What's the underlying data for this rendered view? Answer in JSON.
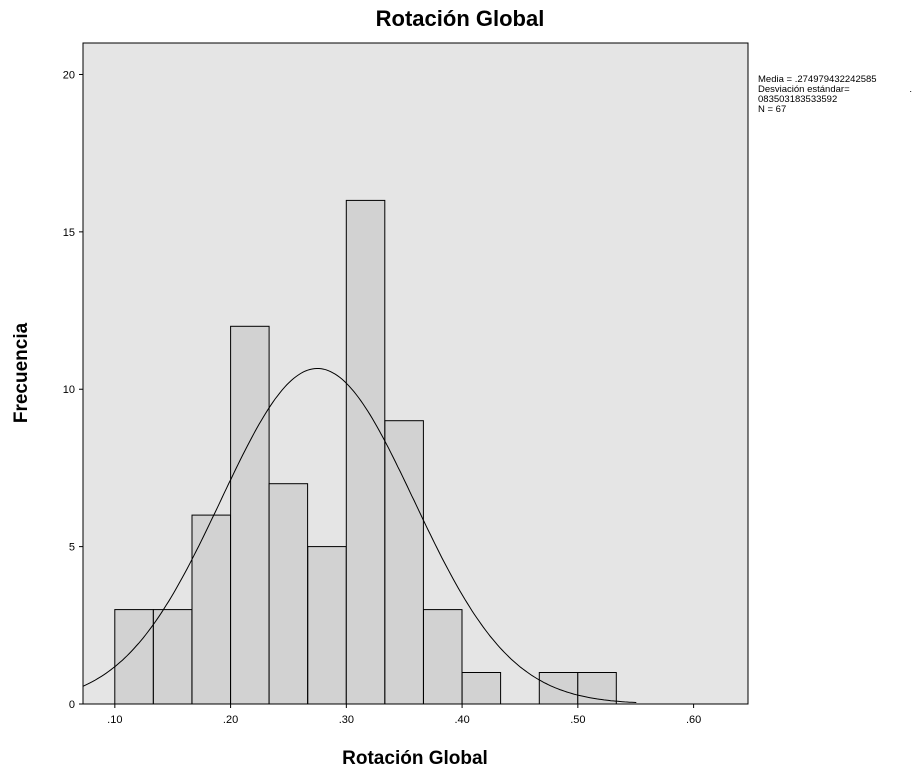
{
  "chart_data": {
    "type": "bar",
    "title": "Rotación Global",
    "xlabel": "Rotación Global",
    "ylabel": "Frecuencia",
    "bin_width": 0.0333,
    "bins": [
      {
        "start": 0.1,
        "count": 3
      },
      {
        "start": 0.1333,
        "count": 3
      },
      {
        "start": 0.1667,
        "count": 6
      },
      {
        "start": 0.2,
        "count": 12
      },
      {
        "start": 0.2333,
        "count": 7
      },
      {
        "start": 0.2667,
        "count": 5
      },
      {
        "start": 0.3,
        "count": 16
      },
      {
        "start": 0.3333,
        "count": 9
      },
      {
        "start": 0.3667,
        "count": 3
      },
      {
        "start": 0.4,
        "count": 1
      },
      {
        "start": 0.4333,
        "count": 0
      },
      {
        "start": 0.4667,
        "count": 1
      },
      {
        "start": 0.5,
        "count": 1
      }
    ],
    "x_ticks": [
      ".10",
      ".20",
      ".30",
      ".40",
      ".50",
      ".60"
    ],
    "x_tick_values": [
      0.1,
      0.2,
      0.3,
      0.4,
      0.5,
      0.6
    ],
    "y_ticks": [
      "0",
      "5",
      "10",
      "15",
      "20"
    ],
    "y_tick_values": [
      0,
      5,
      10,
      15,
      20
    ],
    "xlim": [
      0.0725,
      0.647
    ],
    "ylim": [
      0,
      21.0
    ],
    "normal_curve": {
      "mean": 0.274979432242585,
      "sd": 0.083503183533592,
      "n": 67
    },
    "grid": false,
    "legend": "none",
    "colors": {
      "plot_background": "#e5e5e5",
      "bar_fill": "#d2d2d2",
      "bar_stroke": "#000000",
      "curve": "#000000"
    },
    "stats_box": {
      "line1": "Media =  .274979432242585",
      "line2_label": "Desviación estándar=",
      "line2_value": ".",
      "line3": "083503183533592",
      "line4": "N =   67"
    }
  }
}
